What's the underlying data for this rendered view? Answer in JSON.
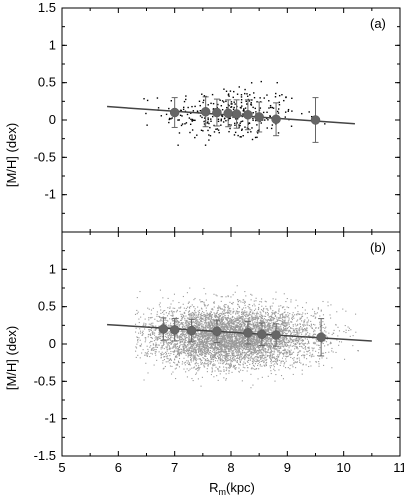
{
  "chart_data": [
    {
      "type": "scatter",
      "panel_label": "(a)",
      "ylabel": "[M/H] (dex)",
      "xlim": [
        5,
        11
      ],
      "ylim": [
        -1.5,
        1.5
      ],
      "y_ticks": [
        "1.5",
        "1",
        "0.5",
        "0",
        "-0.5",
        "-1"
      ],
      "scatter_cloud": {
        "x_center": 8.0,
        "x_spread": 0.6,
        "y_center": 0.08,
        "y_spread": 0.18,
        "count": 320,
        "color": "#000000"
      },
      "fit_line": {
        "x": [
          5.8,
          10.2
        ],
        "y": [
          0.18,
          -0.05
        ]
      },
      "binned_means": [
        {
          "x": 7.0,
          "y": 0.1,
          "err": 0.2
        },
        {
          "x": 7.55,
          "y": 0.11,
          "err": 0.2
        },
        {
          "x": 7.75,
          "y": 0.1,
          "err": 0.18
        },
        {
          "x": 7.95,
          "y": 0.09,
          "err": 0.18
        },
        {
          "x": 8.1,
          "y": 0.08,
          "err": 0.19
        },
        {
          "x": 8.3,
          "y": 0.07,
          "err": 0.2
        },
        {
          "x": 8.5,
          "y": 0.04,
          "err": 0.2
        },
        {
          "x": 8.8,
          "y": 0.01,
          "err": 0.22
        },
        {
          "x": 9.5,
          "y": 0.0,
          "err": 0.3
        }
      ]
    },
    {
      "type": "scatter",
      "panel_label": "(b)",
      "ylabel": "[M/H] (dex)",
      "xlabel": "R",
      "xlabel_sub": "m",
      "xlabel_unit": "(kpc)",
      "xlim": [
        5,
        11
      ],
      "ylim": [
        -1.5,
        1.5
      ],
      "x_ticks": [
        "5",
        "6",
        "7",
        "8",
        "9",
        "10",
        "11"
      ],
      "y_ticks": [
        "1",
        "0.5",
        "0",
        "-0.5",
        "-1",
        "-1.5"
      ],
      "scatter_cloud": {
        "x_center": 8.0,
        "x_spread": 0.75,
        "y_center": 0.1,
        "y_spread": 0.2,
        "count": 6000,
        "color": "#9a9a9a"
      },
      "fit_line": {
        "x": [
          5.8,
          10.5
        ],
        "y": [
          0.26,
          0.04
        ]
      },
      "binned_means": [
        {
          "x": 6.8,
          "y": 0.2,
          "err": 0.15
        },
        {
          "x": 7.0,
          "y": 0.19,
          "err": 0.15
        },
        {
          "x": 7.3,
          "y": 0.18,
          "err": 0.15
        },
        {
          "x": 7.75,
          "y": 0.17,
          "err": 0.15
        },
        {
          "x": 8.3,
          "y": 0.15,
          "err": 0.15
        },
        {
          "x": 8.55,
          "y": 0.13,
          "err": 0.15
        },
        {
          "x": 8.8,
          "y": 0.12,
          "err": 0.15
        },
        {
          "x": 9.6,
          "y": 0.09,
          "err": 0.25
        }
      ]
    }
  ]
}
